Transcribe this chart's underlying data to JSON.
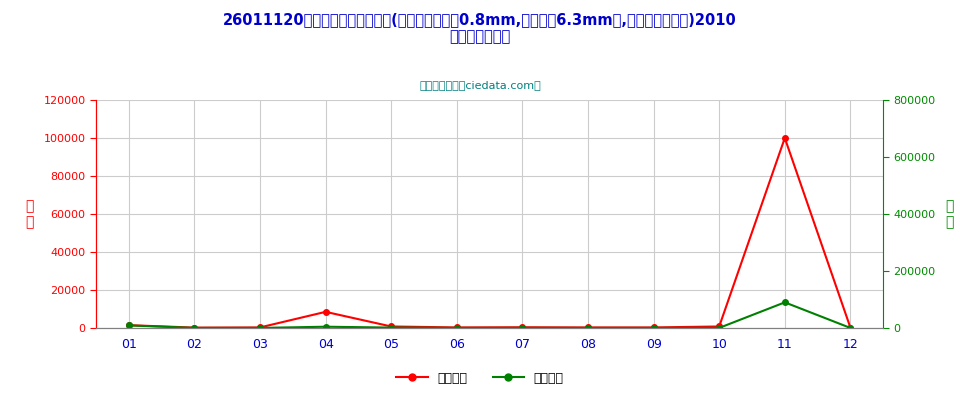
{
  "title_line1": "26011120未烧结铁矿砂及其精矿(平均粒度不小于0.8mm,但不大于6.3mm的,焙烧黄铁矿除外)2010",
  "title_line2": "年出口月度走势",
  "subtitle": "进出口服务网（ciedata.com）",
  "months": [
    "01",
    "02",
    "03",
    "04",
    "05",
    "06",
    "07",
    "08",
    "09",
    "10",
    "11",
    "12"
  ],
  "export_usd": [
    1500,
    200,
    300,
    8500,
    800,
    300,
    400,
    300,
    300,
    800,
    100000,
    200
  ],
  "export_qty": [
    9000,
    300,
    300,
    4500,
    1500,
    300,
    400,
    300,
    300,
    300,
    90000,
    200
  ],
  "left_ylim": [
    0,
    120000
  ],
  "right_ylim": [
    0,
    800000
  ],
  "left_yticks": [
    0,
    20000,
    40000,
    60000,
    80000,
    100000,
    120000
  ],
  "right_yticks": [
    0,
    200000,
    400000,
    600000,
    800000
  ],
  "left_ylabel": "金\n额",
  "right_ylabel": "数\n量",
  "left_tick_color": "#FF0000",
  "right_tick_color": "#008B00",
  "line1_color": "#FF0000",
  "line2_color": "#008000",
  "legend1": "出口美元",
  "legend2": "出口数量",
  "background_color": "#FFFFFF",
  "grid_color": "#CCCCCC",
  "title_color": "#0000CC",
  "subtitle_color": "#008080",
  "axis_bottom_color": "#808080",
  "left_spine_color": "#FF0000",
  "right_spine_color": "#008B00"
}
